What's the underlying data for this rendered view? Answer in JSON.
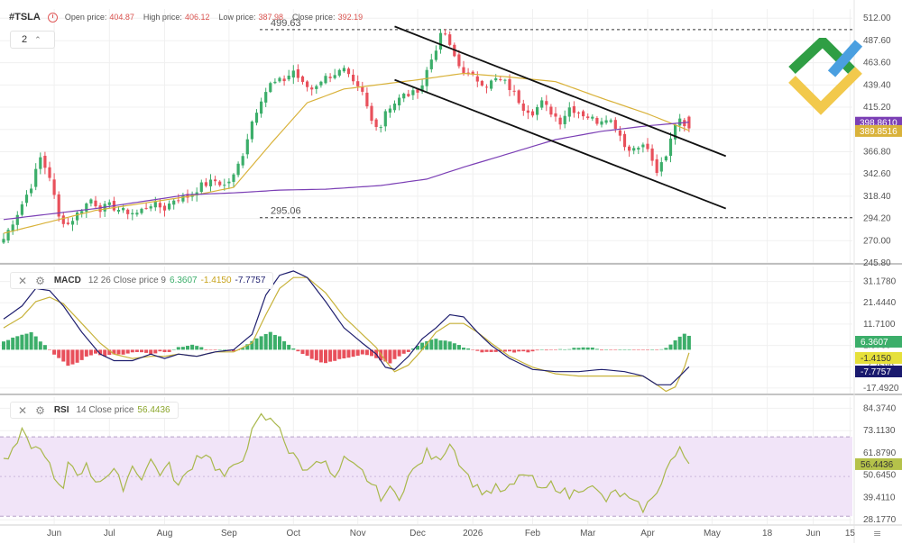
{
  "header": {
    "symbol": "#TSLA",
    "open_label": "Open price:",
    "open_value": "404.87",
    "high_label": "High price:",
    "high_value": "406.12",
    "low_label": "Low price:",
    "low_value": "387.98",
    "close_label": "Close price:",
    "close_value": "392.19",
    "interval": "2"
  },
  "macd_header": {
    "name": "MACD",
    "params": "12 26 Close price 9",
    "v1": "6.3607",
    "v2": "-1.4150",
    "v3": "-7.7757"
  },
  "rsi_header": {
    "name": "RSI",
    "params": "14 Close price",
    "value": "56.4436"
  },
  "colors": {
    "bull": "#3cae6a",
    "bear": "#e8505b",
    "ma_fast": "#d9b23a",
    "ma_slow": "#7b3fb5",
    "macd_line": "#1f1f6e",
    "signal_line": "#c7b23a",
    "rsi_line": "#a9b84c",
    "rsi_band": "#f1e4f8"
  },
  "chart_data": [
    {
      "type": "candlestick",
      "name": "price",
      "y_axis_ticks": [
        "512.00",
        "487.60",
        "463.60",
        "439.40",
        "415.20",
        "391.00",
        "366.80",
        "342.60",
        "318.40",
        "294.20",
        "270.00",
        "245.80"
      ],
      "x_labels": [
        "Jun",
        "Jul",
        "Aug",
        "Sep",
        "Oct",
        "Nov",
        "Dec",
        "2026",
        "Feb",
        "Mar",
        "Apr",
        "May",
        "18",
        "Jun",
        "15"
      ],
      "ylim": [
        245.8,
        522
      ],
      "levels": [
        {
          "label": "499.63",
          "value": 499.63
        },
        {
          "label": "295.06",
          "value": 295.06
        }
      ],
      "channel": {
        "upper": [
          {
            "i": 85,
            "v": 503
          },
          {
            "i": 157,
            "v": 362
          }
        ],
        "lower": [
          {
            "i": 85,
            "v": 445
          },
          {
            "i": 157,
            "v": 305
          }
        ]
      },
      "price_tags": [
        {
          "label": "398.8610",
          "value": 398.861,
          "color": "#7b3fb5"
        },
        {
          "label": "389.8516",
          "value": 389.8516,
          "color": "#d9b23a"
        }
      ],
      "anchors": [
        [
          0,
          272
        ],
        [
          3,
          300
        ],
        [
          6,
          330
        ],
        [
          8,
          360
        ],
        [
          10,
          340
        ],
        [
          12,
          295
        ],
        [
          14,
          288
        ],
        [
          17,
          305
        ],
        [
          19,
          315
        ],
        [
          21,
          305
        ],
        [
          23,
          308
        ],
        [
          26,
          302
        ],
        [
          29,
          300
        ],
        [
          32,
          310
        ],
        [
          35,
          305
        ],
        [
          37,
          315
        ],
        [
          40,
          318
        ],
        [
          43,
          330
        ],
        [
          46,
          335
        ],
        [
          48,
          330
        ],
        [
          50,
          340
        ],
        [
          52,
          365
        ],
        [
          54,
          400
        ],
        [
          56,
          425
        ],
        [
          58,
          440
        ],
        [
          61,
          445
        ],
        [
          63,
          455
        ],
        [
          65,
          440
        ],
        [
          67,
          435
        ],
        [
          69,
          445
        ],
        [
          72,
          452
        ],
        [
          74,
          455
        ],
        [
          76,
          440
        ],
        [
          78,
          430
        ],
        [
          80,
          400
        ],
        [
          82,
          395
        ],
        [
          83,
          412
        ],
        [
          85,
          420
        ],
        [
          87,
          428
        ],
        [
          89,
          430
        ],
        [
          91,
          440
        ],
        [
          92,
          455
        ],
        [
          94,
          480
        ],
        [
          95,
          492
        ],
        [
          96,
          495
        ],
        [
          97,
          480
        ],
        [
          99,
          460
        ],
        [
          101,
          450
        ],
        [
          103,
          445
        ],
        [
          105,
          440
        ],
        [
          107,
          445
        ],
        [
          109,
          442
        ],
        [
          111,
          430
        ],
        [
          113,
          415
        ],
        [
          115,
          410
        ],
        [
          117,
          420
        ],
        [
          119,
          410
        ],
        [
          121,
          400
        ],
        [
          123,
          415
        ],
        [
          125,
          410
        ],
        [
          127,
          405
        ],
        [
          129,
          400
        ],
        [
          131,
          405
        ],
        [
          133,
          395
        ],
        [
          135,
          375
        ],
        [
          136,
          368
        ],
        [
          138,
          375
        ],
        [
          140,
          370
        ],
        [
          141,
          355
        ],
        [
          142,
          345
        ],
        [
          143,
          352
        ],
        [
          144,
          360
        ],
        [
          145,
          380
        ],
        [
          146,
          398
        ],
        [
          147,
          404
        ],
        [
          148,
          398
        ],
        [
          149,
          392.19
        ]
      ],
      "ma_fast": [
        [
          0,
          278
        ],
        [
          20,
          303
        ],
        [
          40,
          318
        ],
        [
          50,
          328
        ],
        [
          58,
          375
        ],
        [
          66,
          420
        ],
        [
          74,
          435
        ],
        [
          82,
          440
        ],
        [
          90,
          445
        ],
        [
          100,
          452
        ],
        [
          110,
          448
        ],
        [
          120,
          443
        ],
        [
          130,
          425
        ],
        [
          140,
          408
        ],
        [
          149,
          389.85
        ]
      ],
      "ma_slow": [
        [
          0,
          293
        ],
        [
          20,
          305
        ],
        [
          40,
          320
        ],
        [
          50,
          322
        ],
        [
          60,
          325
        ],
        [
          70,
          326
        ],
        [
          82,
          330
        ],
        [
          92,
          337
        ],
        [
          100,
          350
        ],
        [
          110,
          365
        ],
        [
          120,
          380
        ],
        [
          130,
          389
        ],
        [
          140,
          395
        ],
        [
          149,
          398.86
        ]
      ]
    },
    {
      "type": "macd",
      "name": "MACD",
      "y_axis_ticks": [
        "31.1780",
        "21.4440",
        "11.7100",
        "1.9760",
        "-7.7580",
        "-17.4920"
      ],
      "ylim": [
        -20,
        38
      ],
      "macd": [
        [
          0,
          14
        ],
        [
          4,
          20
        ],
        [
          7,
          28
        ],
        [
          10,
          27
        ],
        [
          13,
          20
        ],
        [
          17,
          8
        ],
        [
          21,
          -2
        ],
        [
          24,
          -5
        ],
        [
          28,
          -5
        ],
        [
          32,
          -2
        ],
        [
          35,
          -4
        ],
        [
          38,
          -2
        ],
        [
          42,
          -3
        ],
        [
          46,
          -1
        ],
        [
          50,
          0
        ],
        [
          54,
          7
        ],
        [
          57,
          25
        ],
        [
          60,
          34
        ],
        [
          63,
          36
        ],
        [
          66,
          33
        ],
        [
          70,
          22
        ],
        [
          74,
          10
        ],
        [
          78,
          3
        ],
        [
          81,
          -2
        ],
        [
          83,
          -8
        ],
        [
          85,
          -9
        ],
        [
          88,
          -3
        ],
        [
          91,
          5
        ],
        [
          94,
          10
        ],
        [
          97,
          16
        ],
        [
          100,
          15
        ],
        [
          103,
          8
        ],
        [
          106,
          2
        ],
        [
          110,
          -4
        ],
        [
          115,
          -9
        ],
        [
          120,
          -10
        ],
        [
          125,
          -10
        ],
        [
          130,
          -9
        ],
        [
          135,
          -10
        ],
        [
          139,
          -12
        ],
        [
          142,
          -16
        ],
        [
          145,
          -16
        ],
        [
          147,
          -12
        ],
        [
          149,
          -7.7757
        ]
      ],
      "signal": [
        [
          0,
          10
        ],
        [
          4,
          15
        ],
        [
          7,
          22
        ],
        [
          10,
          24
        ],
        [
          13,
          21
        ],
        [
          17,
          12
        ],
        [
          21,
          3
        ],
        [
          24,
          -2
        ],
        [
          28,
          -4
        ],
        [
          32,
          -3
        ],
        [
          35,
          -3
        ],
        [
          38,
          -2
        ],
        [
          42,
          -3
        ],
        [
          46,
          -1
        ],
        [
          50,
          -1
        ],
        [
          54,
          3
        ],
        [
          57,
          16
        ],
        [
          60,
          28
        ],
        [
          63,
          33
        ],
        [
          66,
          33
        ],
        [
          70,
          26
        ],
        [
          74,
          15
        ],
        [
          78,
          7
        ],
        [
          81,
          1
        ],
        [
          83,
          -5
        ],
        [
          85,
          -10
        ],
        [
          88,
          -7
        ],
        [
          91,
          0
        ],
        [
          94,
          8
        ],
        [
          97,
          12
        ],
        [
          100,
          12
        ],
        [
          103,
          8
        ],
        [
          106,
          3
        ],
        [
          110,
          -3
        ],
        [
          115,
          -8
        ],
        [
          120,
          -11
        ],
        [
          125,
          -12
        ],
        [
          130,
          -12
        ],
        [
          135,
          -12
        ],
        [
          139,
          -12
        ],
        [
          142,
          -16
        ],
        [
          144,
          -19
        ],
        [
          146,
          -17
        ],
        [
          148,
          -8
        ],
        [
          149,
          -1.415
        ]
      ],
      "hist_anchors": [
        [
          0,
          4
        ],
        [
          3,
          6
        ],
        [
          6,
          8
        ],
        [
          8,
          4
        ],
        [
          10,
          0
        ],
        [
          12,
          -4
        ],
        [
          14,
          -7
        ],
        [
          16,
          -6
        ],
        [
          18,
          -3
        ],
        [
          20,
          -2
        ],
        [
          22,
          -3
        ],
        [
          24,
          -2
        ],
        [
          26,
          -2
        ],
        [
          28,
          -1
        ],
        [
          30,
          -1
        ],
        [
          32,
          -2
        ],
        [
          34,
          -1
        ],
        [
          36,
          -1
        ],
        [
          38,
          1
        ],
        [
          40,
          2
        ],
        [
          42,
          2
        ],
        [
          44,
          0
        ],
        [
          46,
          0
        ],
        [
          48,
          0
        ],
        [
          50,
          -1
        ],
        [
          52,
          1
        ],
        [
          54,
          4
        ],
        [
          56,
          6
        ],
        [
          58,
          8
        ],
        [
          60,
          6
        ],
        [
          62,
          2
        ],
        [
          64,
          -1
        ],
        [
          66,
          -3
        ],
        [
          68,
          -5
        ],
        [
          70,
          -6
        ],
        [
          72,
          -5
        ],
        [
          74,
          -4
        ],
        [
          76,
          -3
        ],
        [
          78,
          -2
        ],
        [
          80,
          -3
        ],
        [
          82,
          -5
        ],
        [
          84,
          -6
        ],
        [
          86,
          -3
        ],
        [
          88,
          -1
        ],
        [
          90,
          2
        ],
        [
          92,
          4
        ],
        [
          94,
          5
        ],
        [
          96,
          4
        ],
        [
          98,
          3
        ],
        [
          100,
          1
        ],
        [
          102,
          0
        ],
        [
          104,
          -1
        ],
        [
          106,
          -1
        ],
        [
          108,
          -1
        ],
        [
          110,
          -1
        ],
        [
          112,
          -1
        ],
        [
          114,
          -1
        ],
        [
          116,
          0
        ],
        [
          118,
          0
        ],
        [
          120,
          0
        ],
        [
          122,
          0
        ],
        [
          124,
          1
        ],
        [
          126,
          1
        ],
        [
          128,
          1
        ],
        [
          130,
          0
        ],
        [
          132,
          0
        ],
        [
          134,
          0
        ],
        [
          136,
          0
        ],
        [
          138,
          0
        ],
        [
          140,
          0
        ],
        [
          142,
          0
        ],
        [
          144,
          1
        ],
        [
          146,
          4
        ],
        [
          147,
          6
        ],
        [
          148,
          7.5
        ],
        [
          149,
          6.3607
        ]
      ]
    },
    {
      "type": "rsi",
      "name": "RSI",
      "y_axis_ticks": [
        "84.3740",
        "73.1130",
        "61.8790",
        "50.6450",
        "39.4110",
        "28.1770"
      ],
      "ylim": [
        26,
        90
      ],
      "band": [
        30,
        70
      ],
      "anchors": [
        [
          0,
          58
        ],
        [
          2,
          62
        ],
        [
          4,
          72
        ],
        [
          5,
          68
        ],
        [
          7,
          64
        ],
        [
          9,
          62
        ],
        [
          11,
          48
        ],
        [
          13,
          42
        ],
        [
          14,
          58
        ],
        [
          16,
          52
        ],
        [
          18,
          55
        ],
        [
          20,
          48
        ],
        [
          22,
          50
        ],
        [
          24,
          52
        ],
        [
          26,
          45
        ],
        [
          28,
          55
        ],
        [
          30,
          50
        ],
        [
          32,
          58
        ],
        [
          34,
          52
        ],
        [
          36,
          55
        ],
        [
          38,
          45
        ],
        [
          40,
          52
        ],
        [
          42,
          60
        ],
        [
          44,
          62
        ],
        [
          46,
          55
        ],
        [
          48,
          50
        ],
        [
          50,
          54
        ],
        [
          52,
          60
        ],
        [
          54,
          72
        ],
        [
          56,
          80
        ],
        [
          58,
          78
        ],
        [
          60,
          76
        ],
        [
          62,
          62
        ],
        [
          64,
          58
        ],
        [
          66,
          52
        ],
        [
          68,
          60
        ],
        [
          70,
          56
        ],
        [
          72,
          48
        ],
        [
          74,
          58
        ],
        [
          76,
          55
        ],
        [
          78,
          52
        ],
        [
          80,
          46
        ],
        [
          82,
          40
        ],
        [
          84,
          43
        ],
        [
          86,
          40
        ],
        [
          88,
          50
        ],
        [
          90,
          55
        ],
        [
          92,
          62
        ],
        [
          94,
          58
        ],
        [
          96,
          63
        ],
        [
          97,
          68
        ],
        [
          99,
          58
        ],
        [
          101,
          50
        ],
        [
          103,
          44
        ],
        [
          105,
          42
        ],
        [
          107,
          44
        ],
        [
          109,
          42
        ],
        [
          111,
          46
        ],
        [
          113,
          52
        ],
        [
          115,
          48
        ],
        [
          117,
          42
        ],
        [
          119,
          46
        ],
        [
          121,
          44
        ],
        [
          123,
          40
        ],
        [
          125,
          44
        ],
        [
          127,
          46
        ],
        [
          129,
          42
        ],
        [
          131,
          38
        ],
        [
          133,
          42
        ],
        [
          135,
          40
        ],
        [
          137,
          36
        ],
        [
          139,
          34
        ],
        [
          141,
          38
        ],
        [
          143,
          48
        ],
        [
          145,
          58
        ],
        [
          146,
          60
        ],
        [
          147,
          63
        ],
        [
          148,
          60
        ],
        [
          149,
          56.4436
        ]
      ]
    }
  ]
}
